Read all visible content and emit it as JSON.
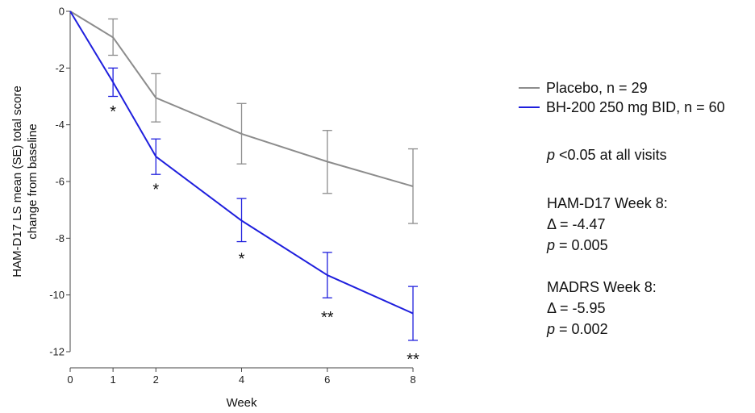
{
  "chart_data": {
    "type": "line",
    "xlabel": "Week",
    "ylabel": [
      "HAM-D17 LS mean (SE) total score",
      "change from baseline"
    ],
    "xlim": [
      0,
      8
    ],
    "ylim": [
      -12,
      0
    ],
    "x_ticks": [
      0,
      1,
      2,
      4,
      6,
      8
    ],
    "y_ticks": [
      0,
      -2,
      -4,
      -6,
      -8,
      -10,
      -12
    ],
    "grid": false,
    "legend_position": "right",
    "series": [
      {
        "name": "Placebo, n = 29",
        "color": "#8c8c8c",
        "x": [
          0,
          1,
          2,
          4,
          6,
          8
        ],
        "y": [
          0,
          -0.92,
          -3.05,
          -4.32,
          -5.3,
          -6.17
        ],
        "err_lo": [
          null,
          -1.55,
          -3.9,
          -5.38,
          -6.42,
          -7.48
        ],
        "err_hi": [
          null,
          -0.27,
          -2.2,
          -3.25,
          -4.2,
          -4.85
        ]
      },
      {
        "name": "BH-200 250 mg BID, n = 60",
        "color": "#1f1fdd",
        "x": [
          0,
          1,
          2,
          4,
          6,
          8
        ],
        "y": [
          0,
          -2.5,
          -5.12,
          -7.38,
          -9.3,
          -10.65
        ],
        "err_lo": [
          null,
          -3.0,
          -5.75,
          -8.12,
          -10.1,
          -11.6
        ],
        "err_hi": [
          null,
          -2.0,
          -4.5,
          -6.6,
          -8.5,
          -9.7
        ]
      }
    ],
    "annotations": [
      {
        "x": 1,
        "label": "*",
        "y": -3.72
      },
      {
        "x": 2,
        "label": "*",
        "y": -6.47
      },
      {
        "x": 4,
        "label": "*",
        "y": -8.92
      },
      {
        "x": 6,
        "label": "**",
        "y": -10.97
      },
      {
        "x": 8,
        "label": "**",
        "y": -12.45
      }
    ]
  },
  "notes": {
    "pvalue_all": {
      "p": "p",
      "rest": " <0.05 at all visits"
    },
    "hamd_title": "HAM-D17 Week 8:",
    "hamd_delta": "Δ = -4.47",
    "hamd_p": {
      "p": "p",
      "rest": " = 0.005"
    },
    "madrs_title": "MADRS Week 8:",
    "madrs_delta": "Δ = -5.95",
    "madrs_p": {
      "p": "p",
      "rest": " = 0.002"
    }
  }
}
